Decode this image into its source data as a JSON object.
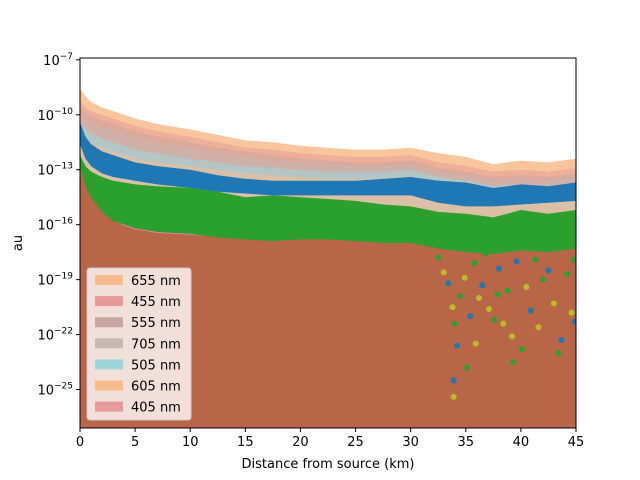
{
  "chart_data": {
    "type": "area",
    "title": "",
    "xlabel": "Distance from source (km)",
    "ylabel": "au",
    "xlim": [
      0,
      45
    ],
    "ylog": true,
    "ylim_log10": [
      -27.1,
      -6.9
    ],
    "xticks": [
      0,
      5,
      10,
      15,
      20,
      25,
      30,
      35,
      40,
      45
    ],
    "yticks": [
      {
        "exp": -7,
        "label": "10",
        "sup": "−7"
      },
      {
        "exp": -10,
        "label": "10",
        "sup": "−10"
      },
      {
        "exp": -13,
        "label": "10",
        "sup": "−13"
      },
      {
        "exp": -16,
        "label": "10",
        "sup": "−16"
      },
      {
        "exp": -19,
        "label": "10",
        "sup": "−19"
      },
      {
        "exp": -22,
        "label": "10",
        "sup": "−22"
      },
      {
        "exp": -25,
        "label": "10",
        "sup": "−25"
      }
    ],
    "grid": false,
    "legend_position": "lower-left",
    "x": [
      0,
      0.5,
      1,
      2,
      3,
      4,
      5,
      7,
      10,
      12.5,
      15,
      17.5,
      20,
      22.5,
      25,
      27.5,
      30,
      32.5,
      35,
      37.5,
      40,
      42.5,
      45
    ],
    "series": [
      {
        "name": "655 nm",
        "color": "#f7bb8c",
        "values_log10": [
          -8.6,
          -9.0,
          -9.3,
          -9.6,
          -9.8,
          -10.0,
          -10.2,
          -10.5,
          -10.8,
          -11.1,
          -11.4,
          -11.5,
          -11.7,
          -11.8,
          -11.9,
          -11.9,
          -11.8,
          -12.1,
          -12.3,
          -12.7,
          -12.5,
          -12.6,
          -12.4
        ]
      },
      {
        "name": "455 nm",
        "color": "#e89a98",
        "values_log10": [
          -9.2,
          -9.6,
          -9.8,
          -10.0,
          -10.2,
          -10.4,
          -10.6,
          -10.9,
          -11.2,
          -11.5,
          -11.8,
          -11.9,
          -12.1,
          -12.2,
          -12.3,
          -12.3,
          -12.2,
          -12.6,
          -12.8,
          -13.1,
          -13.0,
          -13.1,
          -12.9
        ]
      },
      {
        "name": "555 nm",
        "color": "#c8a7a0",
        "values_log10": [
          -9.6,
          -9.9,
          -10.1,
          -10.3,
          -10.5,
          -10.7,
          -10.9,
          -11.2,
          -11.5,
          -11.8,
          -12.0,
          -12.2,
          -12.4,
          -12.5,
          -12.6,
          -12.6,
          -12.5,
          -12.9,
          -13.1,
          -13.4,
          -13.3,
          -13.4,
          -13.2
        ]
      },
      {
        "name": "705 nm",
        "color": "#c7b7b1",
        "values_log10": [
          -10.0,
          -10.3,
          -10.5,
          -10.7,
          -10.9,
          -11.1,
          -11.3,
          -11.6,
          -11.9,
          -12.1,
          -12.3,
          -12.5,
          -12.6,
          -12.7,
          -12.8,
          -12.8,
          -12.7,
          -13.1,
          -13.3,
          -13.6,
          -13.5,
          -13.6,
          -13.4
        ]
      },
      {
        "name": "505 nm",
        "color": "#9fd5dc",
        "values_log10": [
          -10.5,
          -10.8,
          -11.0,
          -11.3,
          -11.5,
          -11.7,
          -11.9,
          -12.1,
          -12.4,
          -12.6,
          -12.8,
          -12.9,
          -13.0,
          -13.1,
          -13.1,
          -13.1,
          -13.0,
          -13.4,
          -13.6,
          -13.9,
          -13.8,
          -13.9,
          -13.7
        ]
      },
      {
        "name": "605 nm",
        "color": "#f7bb8c",
        "values_log10": [
          -11.0,
          -11.3,
          -11.5,
          -11.8,
          -12.0,
          -12.2,
          -12.4,
          -12.6,
          -12.8,
          -13.0,
          -13.2,
          -13.3,
          -13.4,
          -13.5,
          -13.5,
          -13.5,
          -13.4,
          -13.7,
          -13.9,
          -14.2,
          -14.1,
          -14.2,
          -14.0
        ]
      },
      {
        "name": "405 nm",
        "color": "#e89a98",
        "values_log10": [
          -12.6,
          -13.6,
          -14.2,
          -15.0,
          -15.5,
          -15.8,
          -16.0,
          -16.2,
          -16.3,
          -16.4,
          -16.4,
          -16.5,
          -16.5,
          -16.5,
          -16.5,
          -16.6,
          -16.6,
          -16.7,
          -16.7,
          -16.8,
          -16.8,
          -16.8,
          -16.8
        ]
      }
    ],
    "overlay_bands": [
      {
        "color": "#1f77b4",
        "top_log10": [
          -10.4,
          -11.2,
          -11.6,
          -12.0,
          -12.2,
          -12.4,
          -12.6,
          -12.8,
          -13.0,
          -13.3,
          -13.5,
          -13.6,
          -13.6,
          -13.6,
          -13.6,
          -13.5,
          -13.4,
          -13.6,
          -13.7,
          -14.0,
          -13.8,
          -13.9,
          -13.7
        ],
        "bottom_log10": [
          -11.6,
          -12.4,
          -12.8,
          -13.2,
          -13.4,
          -13.5,
          -13.6,
          -13.8,
          -14.0,
          -14.2,
          -14.3,
          -14.4,
          -14.4,
          -14.4,
          -14.4,
          -14.4,
          -14.4,
          -14.8,
          -15.0,
          -15.0,
          -14.9,
          -14.8,
          -14.7
        ]
      },
      {
        "color": "#2ca02c",
        "top_log10": [
          -12.2,
          -12.8,
          -13.1,
          -13.4,
          -13.6,
          -13.7,
          -13.8,
          -13.9,
          -14.0,
          -14.2,
          -14.5,
          -14.4,
          -14.5,
          -14.6,
          -14.7,
          -14.9,
          -15.0,
          -15.3,
          -15.4,
          -15.6,
          -15.2,
          -15.4,
          -15.2
        ],
        "bottom_log10": [
          -12.8,
          -13.9,
          -14.5,
          -15.3,
          -15.8,
          -16.0,
          -16.2,
          -16.4,
          -16.5,
          -16.7,
          -16.8,
          -16.9,
          -16.8,
          -16.8,
          -16.9,
          -17.0,
          -17.0,
          -17.3,
          -17.5,
          -17.6,
          -17.4,
          -17.5,
          -17.3
        ]
      }
    ],
    "base_fill_color": "#b86548",
    "scatter_points": [
      {
        "x": 32.5,
        "y_log10": -17.8,
        "color": "#2ca02c"
      },
      {
        "x": 33.0,
        "y_log10": -18.6,
        "color": "#bcbd22"
      },
      {
        "x": 33.4,
        "y_log10": -19.2,
        "color": "#1f77b4"
      },
      {
        "x": 33.8,
        "y_log10": -20.5,
        "color": "#bcbd22"
      },
      {
        "x": 34.0,
        "y_log10": -21.4,
        "color": "#2ca02c"
      },
      {
        "x": 34.2,
        "y_log10": -22.6,
        "color": "#1f77b4"
      },
      {
        "x": 33.9,
        "y_log10": -24.5,
        "color": "#1f77b4"
      },
      {
        "x": 33.9,
        "y_log10": -25.4,
        "color": "#bcbd22"
      },
      {
        "x": 34.5,
        "y_log10": -19.9,
        "color": "#2ca02c"
      },
      {
        "x": 34.9,
        "y_log10": -18.9,
        "color": "#bcbd22"
      },
      {
        "x": 35.1,
        "y_log10": -23.8,
        "color": "#2ca02c"
      },
      {
        "x": 35.4,
        "y_log10": -21.0,
        "color": "#1f77b4"
      },
      {
        "x": 35.8,
        "y_log10": -18.1,
        "color": "#2ca02c"
      },
      {
        "x": 36.2,
        "y_log10": -20.0,
        "color": "#bcbd22"
      },
      {
        "x": 36.5,
        "y_log10": -19.3,
        "color": "#1f77b4"
      },
      {
        "x": 36.8,
        "y_log10": -17.6,
        "color": "#2ca02c"
      },
      {
        "x": 37.1,
        "y_log10": -20.6,
        "color": "#bcbd22"
      },
      {
        "x": 37.6,
        "y_log10": -21.2,
        "color": "#2ca02c"
      },
      {
        "x": 38.0,
        "y_log10": -18.4,
        "color": "#1f77b4"
      },
      {
        "x": 38.4,
        "y_log10": -21.4,
        "color": "#bcbd22"
      },
      {
        "x": 38.8,
        "y_log10": -19.6,
        "color": "#2ca02c"
      },
      {
        "x": 39.2,
        "y_log10": -22.1,
        "color": "#bcbd22"
      },
      {
        "x": 39.3,
        "y_log10": -23.5,
        "color": "#2ca02c"
      },
      {
        "x": 39.6,
        "y_log10": -18.0,
        "color": "#1f77b4"
      },
      {
        "x": 40.1,
        "y_log10": -22.8,
        "color": "#2ca02c"
      },
      {
        "x": 40.5,
        "y_log10": -19.4,
        "color": "#bcbd22"
      },
      {
        "x": 40.9,
        "y_log10": -20.7,
        "color": "#1f77b4"
      },
      {
        "x": 41.3,
        "y_log10": -17.9,
        "color": "#2ca02c"
      },
      {
        "x": 41.6,
        "y_log10": -21.6,
        "color": "#bcbd22"
      },
      {
        "x": 42.0,
        "y_log10": -19.0,
        "color": "#2ca02c"
      },
      {
        "x": 42.5,
        "y_log10": -18.5,
        "color": "#1f77b4"
      },
      {
        "x": 43.0,
        "y_log10": -20.3,
        "color": "#bcbd22"
      },
      {
        "x": 43.4,
        "y_log10": -23.0,
        "color": "#2ca02c"
      },
      {
        "x": 43.7,
        "y_log10": -22.3,
        "color": "#1f77b4"
      },
      {
        "x": 44.2,
        "y_log10": -18.7,
        "color": "#2ca02c"
      },
      {
        "x": 44.6,
        "y_log10": -20.8,
        "color": "#bcbd22"
      },
      {
        "x": 44.9,
        "y_log10": -21.3,
        "color": "#1f77b4"
      },
      {
        "x": 44.8,
        "y_log10": -17.9,
        "color": "#2ca02c"
      },
      {
        "x": 35.9,
        "y_log10": -22.5,
        "color": "#bcbd22"
      },
      {
        "x": 37.9,
        "y_log10": -19.8,
        "color": "#2ca02c"
      }
    ],
    "legend": [
      "655 nm",
      "455 nm",
      "555 nm",
      "705 nm",
      "505 nm",
      "605 nm",
      "405 nm"
    ]
  }
}
